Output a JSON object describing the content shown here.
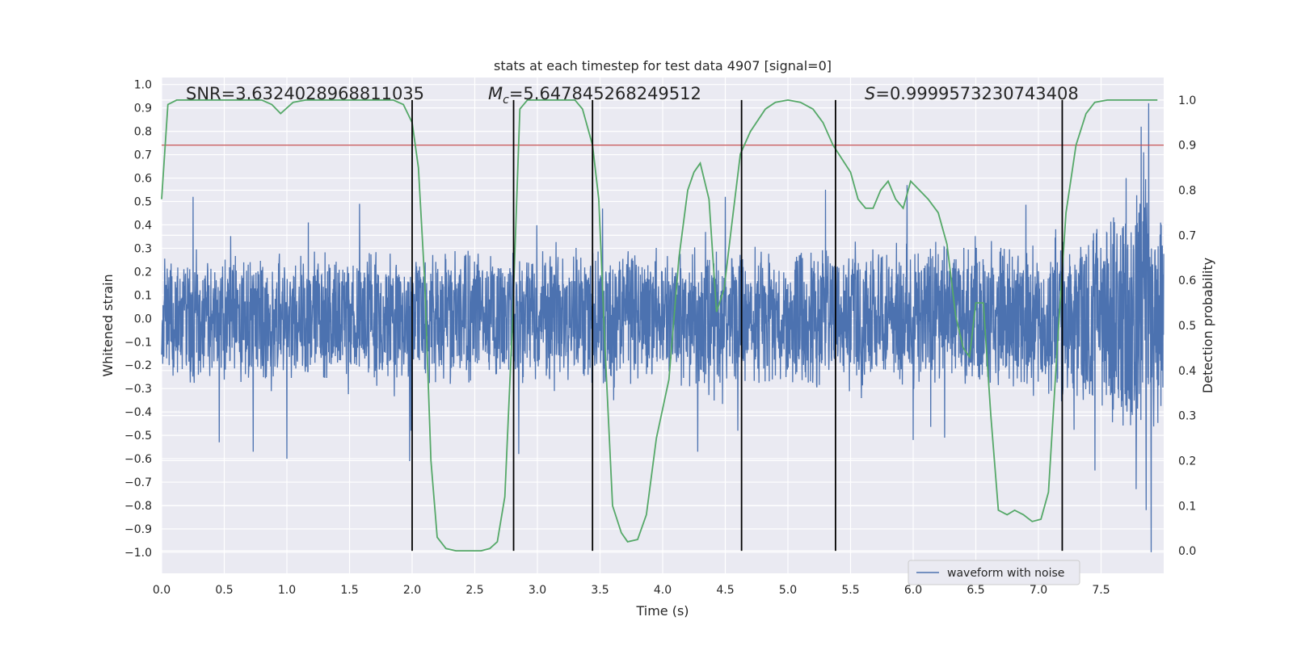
{
  "chart_data": {
    "type": "line",
    "title": "stats at each timestep for test data 4907 [signal=0]",
    "xlabel": "Time (s)",
    "ylabel": "Whitened strain",
    "ylabel_right": "Detection probability",
    "xlim": [
      0,
      8
    ],
    "ylim": [
      -1.09,
      1.03
    ],
    "ylim_right": [
      -0.05,
      1.05
    ],
    "x_ticks": [
      "0.0",
      "0.5",
      "1.0",
      "1.5",
      "2.0",
      "2.5",
      "3.0",
      "3.5",
      "4.0",
      "4.5",
      "5.0",
      "5.5",
      "6.0",
      "6.5",
      "7.0",
      "7.5"
    ],
    "y_ticks": [
      "−1.0",
      "−0.9",
      "−0.8",
      "−0.7",
      "−0.6",
      "−0.5",
      "−0.4",
      "−0.3",
      "−0.2",
      "−0.1",
      "0.0",
      "0.1",
      "0.2",
      "0.3",
      "0.4",
      "0.5",
      "0.6",
      "0.7",
      "0.8",
      "0.9",
      "1.0"
    ],
    "y_ticks_right": [
      "0.0",
      "0.1",
      "0.2",
      "0.3",
      "0.4",
      "0.5",
      "0.6",
      "0.7",
      "0.8",
      "0.9",
      "1.0"
    ],
    "annotations": {
      "snr": "SNR=3.6324028968811035",
      "mc_symbol": "M",
      "mc_subscript": "c",
      "mc_value": "=5.647845268249512",
      "s_symbol": "S",
      "s_value": "=0.9999573230743408"
    },
    "legend": {
      "label": "waveform with noise",
      "placement": "lower-right"
    },
    "colors": {
      "waveform": "#4c72b0",
      "probability": "#55a868",
      "threshold": "#c44e52",
      "event": "#000000",
      "panel": "#eaeaf2",
      "grid": "#ffffff"
    },
    "threshold_probability": 0.9,
    "event_times": [
      2.0,
      2.81,
      3.44,
      4.63,
      5.38,
      7.19
    ],
    "waveform": {
      "name": "waveform with noise",
      "envelope": [
        {
          "t": 0.0,
          "amp": 0.3
        },
        {
          "t": 0.5,
          "amp": 0.31
        },
        {
          "t": 1.0,
          "amp": 0.3
        },
        {
          "t": 1.5,
          "amp": 0.3
        },
        {
          "t": 2.0,
          "amp": 0.31
        },
        {
          "t": 2.5,
          "amp": 0.3
        },
        {
          "t": 3.0,
          "amp": 0.3
        },
        {
          "t": 3.5,
          "amp": 0.31
        },
        {
          "t": 4.0,
          "amp": 0.31
        },
        {
          "t": 4.5,
          "amp": 0.32
        },
        {
          "t": 5.0,
          "amp": 0.31
        },
        {
          "t": 5.5,
          "amp": 0.32
        },
        {
          "t": 6.0,
          "amp": 0.33
        },
        {
          "t": 6.5,
          "amp": 0.35
        },
        {
          "t": 7.0,
          "amp": 0.37
        },
        {
          "t": 7.3,
          "amp": 0.4
        },
        {
          "t": 7.6,
          "amp": 0.48
        },
        {
          "t": 7.85,
          "amp": 0.62
        },
        {
          "t": 8.0,
          "amp": 0.45
        }
      ],
      "peaks": [
        {
          "t": 0.25,
          "y": 0.52
        },
        {
          "t": 0.46,
          "y": -0.53
        },
        {
          "t": 1.0,
          "y": -0.6
        },
        {
          "t": 0.73,
          "y": -0.57
        },
        {
          "t": 1.58,
          "y": 0.49
        },
        {
          "t": 1.98,
          "y": -0.61
        },
        {
          "t": 1.99,
          "y": -0.48
        },
        {
          "t": 2.85,
          "y": -0.58
        },
        {
          "t": 3.52,
          "y": 0.47
        },
        {
          "t": 4.28,
          "y": -0.57
        },
        {
          "t": 4.5,
          "y": 0.52
        },
        {
          "t": 4.6,
          "y": -0.48
        },
        {
          "t": 5.3,
          "y": 0.55
        },
        {
          "t": 5.95,
          "y": 0.57
        },
        {
          "t": 6.0,
          "y": -0.52
        },
        {
          "t": 6.25,
          "y": -0.51
        },
        {
          "t": 7.45,
          "y": -0.65
        },
        {
          "t": 7.7,
          "y": 0.6
        },
        {
          "t": 7.78,
          "y": -0.73
        },
        {
          "t": 7.82,
          "y": 0.82
        },
        {
          "t": 7.86,
          "y": -0.82
        },
        {
          "t": 7.88,
          "y": 0.92
        },
        {
          "t": 7.9,
          "y": -1.0
        },
        {
          "t": 7.84,
          "y": 0.71
        }
      ]
    },
    "probability": {
      "name": "Detection probability",
      "points": [
        [
          0.0,
          0.78
        ],
        [
          0.05,
          0.99
        ],
        [
          0.12,
          1.0
        ],
        [
          0.8,
          1.0
        ],
        [
          0.88,
          0.99
        ],
        [
          0.95,
          0.97
        ],
        [
          1.05,
          0.995
        ],
        [
          1.15,
          1.0
        ],
        [
          1.85,
          1.0
        ],
        [
          1.93,
          0.99
        ],
        [
          2.0,
          0.95
        ],
        [
          2.05,
          0.85
        ],
        [
          2.1,
          0.6
        ],
        [
          2.15,
          0.2
        ],
        [
          2.2,
          0.03
        ],
        [
          2.27,
          0.005
        ],
        [
          2.35,
          0.0
        ],
        [
          2.55,
          0.0
        ],
        [
          2.62,
          0.005
        ],
        [
          2.68,
          0.02
        ],
        [
          2.74,
          0.12
        ],
        [
          2.8,
          0.5
        ],
        [
          2.86,
          0.98
        ],
        [
          2.92,
          1.0
        ],
        [
          3.3,
          1.0
        ],
        [
          3.36,
          0.98
        ],
        [
          3.44,
          0.9
        ],
        [
          3.49,
          0.78
        ],
        [
          3.54,
          0.45
        ],
        [
          3.6,
          0.1
        ],
        [
          3.67,
          0.04
        ],
        [
          3.72,
          0.02
        ],
        [
          3.8,
          0.025
        ],
        [
          3.87,
          0.08
        ],
        [
          3.95,
          0.25
        ],
        [
          4.05,
          0.38
        ],
        [
          4.13,
          0.65
        ],
        [
          4.2,
          0.8
        ],
        [
          4.25,
          0.84
        ],
        [
          4.3,
          0.86
        ],
        [
          4.37,
          0.78
        ],
        [
          4.43,
          0.53
        ],
        [
          4.49,
          0.58
        ],
        [
          4.55,
          0.72
        ],
        [
          4.62,
          0.88
        ],
        [
          4.7,
          0.93
        ],
        [
          4.82,
          0.98
        ],
        [
          4.9,
          0.995
        ],
        [
          5.0,
          1.0
        ],
        [
          5.1,
          0.995
        ],
        [
          5.2,
          0.98
        ],
        [
          5.28,
          0.95
        ],
        [
          5.36,
          0.9
        ],
        [
          5.43,
          0.87
        ],
        [
          5.5,
          0.84
        ],
        [
          5.56,
          0.78
        ],
        [
          5.62,
          0.76
        ],
        [
          5.68,
          0.76
        ],
        [
          5.74,
          0.8
        ],
        [
          5.8,
          0.82
        ],
        [
          5.86,
          0.78
        ],
        [
          5.92,
          0.76
        ],
        [
          5.98,
          0.82
        ],
        [
          6.05,
          0.8
        ],
        [
          6.12,
          0.78
        ],
        [
          6.2,
          0.75
        ],
        [
          6.27,
          0.68
        ],
        [
          6.34,
          0.52
        ],
        [
          6.4,
          0.45
        ],
        [
          6.45,
          0.43
        ],
        [
          6.5,
          0.55
        ],
        [
          6.56,
          0.55
        ],
        [
          6.62,
          0.3
        ],
        [
          6.68,
          0.09
        ],
        [
          6.75,
          0.08
        ],
        [
          6.81,
          0.09
        ],
        [
          6.88,
          0.08
        ],
        [
          6.95,
          0.065
        ],
        [
          7.02,
          0.07
        ],
        [
          7.08,
          0.13
        ],
        [
          7.15,
          0.45
        ],
        [
          7.22,
          0.75
        ],
        [
          7.3,
          0.9
        ],
        [
          7.38,
          0.97
        ],
        [
          7.45,
          0.995
        ],
        [
          7.55,
          1.0
        ],
        [
          7.95,
          1.0
        ]
      ]
    }
  }
}
